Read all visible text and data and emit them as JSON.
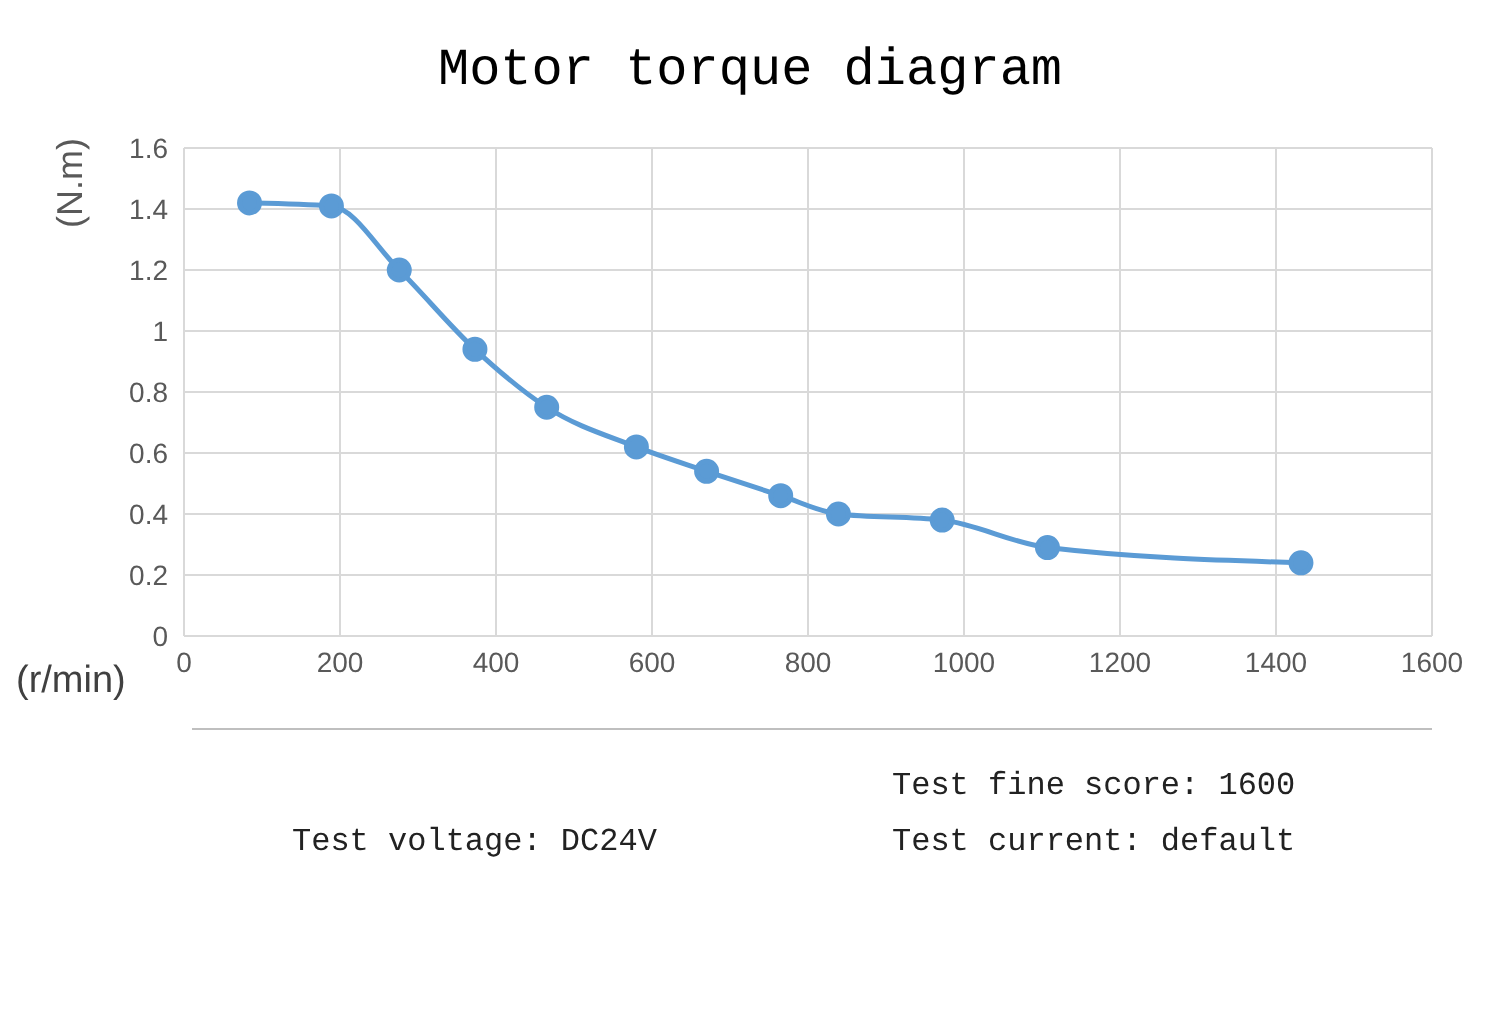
{
  "chart_data": {
    "type": "line",
    "title": "Motor torque diagram",
    "xlabel": "(r/min)",
    "ylabel": "(N.m)",
    "x": [
      84,
      189,
      276,
      373,
      465,
      580,
      670,
      765,
      839,
      972,
      1107,
      1432
    ],
    "series": [
      {
        "color": "#5b9bd5",
        "values": [
          1.42,
          1.41,
          1.2,
          0.94,
          0.75,
          0.62,
          0.54,
          0.46,
          0.4,
          0.38,
          0.29,
          0.24
        ]
      }
    ],
    "xlim": [
      0,
      1600
    ],
    "xticks": [
      0,
      200,
      400,
      600,
      800,
      1000,
      1200,
      1400,
      1600
    ],
    "ylim": [
      0,
      1.6
    ],
    "yticks": [
      0,
      0.2,
      0.4,
      0.6,
      0.8,
      1,
      1.2,
      1.4,
      1.6
    ],
    "grid": true,
    "marker": "circle",
    "line_style": "solid",
    "legend": false,
    "annotations": [
      "Test fine score: 1600",
      "Test voltage: DC24V",
      "Test current: default"
    ]
  }
}
